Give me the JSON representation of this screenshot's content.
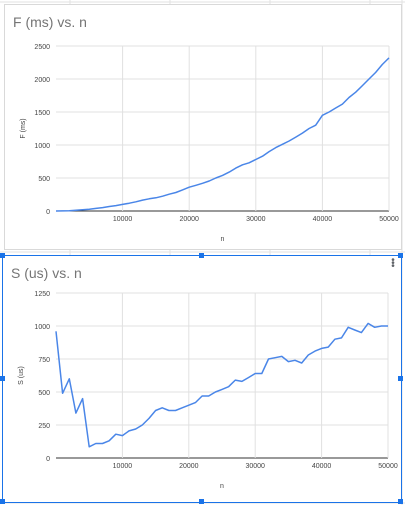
{
  "chart_data": [
    {
      "type": "line",
      "title": "F (ms) vs. n",
      "xlabel": "n",
      "ylabel": "F (ms)",
      "xlim": [
        0,
        50000
      ],
      "ylim": [
        0,
        2500
      ],
      "xticks": [
        10000,
        20000,
        30000,
        40000,
        50000
      ],
      "xtick_labels": [
        "10000",
        "20000",
        "30000",
        "40000",
        "50000"
      ],
      "yticks": [
        0,
        500,
        1000,
        1500,
        2000,
        2500
      ],
      "ytick_labels": [
        "0",
        "500",
        "1000",
        "1500",
        "2000",
        "2500"
      ],
      "grid": true,
      "color": "#4a86e8",
      "series": [
        {
          "x": [
            0,
            1000,
            2000,
            3000,
            4000,
            5000,
            6000,
            7000,
            8000,
            9000,
            10000,
            11000,
            12000,
            13000,
            14000,
            15000,
            16000,
            17000,
            18000,
            19000,
            20000,
            21000,
            22000,
            23000,
            24000,
            25000,
            26000,
            27000,
            28000,
            29000,
            30000,
            31000,
            32000,
            33000,
            34000,
            35000,
            36000,
            37000,
            38000,
            39000,
            40000,
            41000,
            42000,
            43000,
            44000,
            45000,
            46000,
            47000,
            48000,
            49000,
            50000
          ],
          "y": [
            0,
            2,
            5,
            10,
            18,
            28,
            40,
            52,
            68,
            82,
            100,
            118,
            140,
            165,
            185,
            200,
            225,
            255,
            280,
            320,
            360,
            390,
            420,
            455,
            500,
            540,
            590,
            650,
            700,
            730,
            780,
            830,
            900,
            960,
            1010,
            1060,
            1120,
            1180,
            1250,
            1300,
            1450,
            1500,
            1560,
            1620,
            1720,
            1800,
            1900,
            2000,
            2100,
            2220,
            2320
          ]
        }
      ]
    },
    {
      "type": "line",
      "title": "S (us) vs. n",
      "xlabel": "n",
      "ylabel": "S (us)",
      "xlim": [
        0,
        50000
      ],
      "ylim": [
        0,
        1250
      ],
      "xticks": [
        10000,
        20000,
        30000,
        40000,
        50000
      ],
      "xtick_labels": [
        "10000",
        "20000",
        "30000",
        "40000",
        "50000"
      ],
      "yticks": [
        0,
        250,
        500,
        750,
        1000,
        1250
      ],
      "ytick_labels": [
        "0",
        "250",
        "500",
        "750",
        "1000",
        "1250"
      ],
      "grid": true,
      "color": "#4a86e8",
      "series": [
        {
          "x": [
            0,
            1000,
            2000,
            3000,
            4000,
            5000,
            6000,
            7000,
            8000,
            9000,
            10000,
            11000,
            12000,
            13000,
            14000,
            15000,
            16000,
            17000,
            18000,
            19000,
            20000,
            21000,
            22000,
            23000,
            24000,
            25000,
            26000,
            27000,
            28000,
            29000,
            30000,
            31000,
            32000,
            33000,
            34000,
            35000,
            36000,
            37000,
            38000,
            39000,
            40000,
            41000,
            42000,
            43000,
            44000,
            45000,
            46000,
            47000,
            48000,
            49000,
            50000
          ],
          "y": [
            960,
            490,
            600,
            340,
            450,
            85,
            110,
            110,
            130,
            180,
            170,
            205,
            220,
            250,
            300,
            360,
            380,
            360,
            360,
            380,
            400,
            420,
            470,
            470,
            500,
            520,
            540,
            590,
            580,
            610,
            640,
            640,
            750,
            760,
            770,
            730,
            740,
            720,
            780,
            810,
            830,
            840,
            900,
            910,
            990,
            970,
            950,
            1020,
            990,
            1000,
            1000
          ]
        }
      ]
    }
  ],
  "sheet": {
    "grid_color": "#e2e2e2",
    "selection_color": "#1a73e8",
    "menu_icon": "kebab-menu-icon"
  }
}
